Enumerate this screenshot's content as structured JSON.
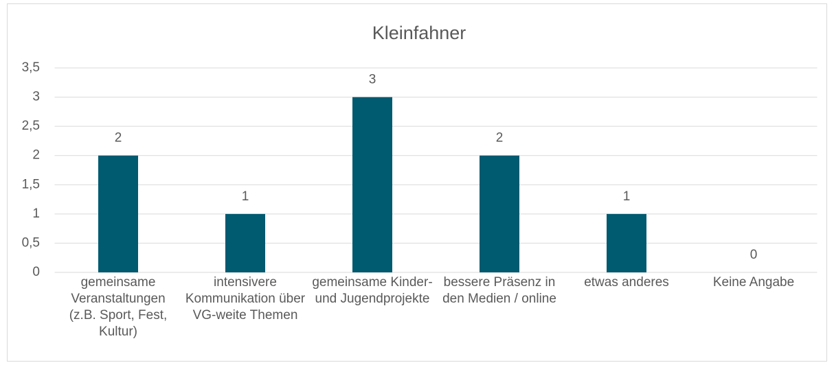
{
  "chart_data": {
    "type": "bar",
    "title": "Kleinfahner",
    "categories": [
      "gemeinsame Veranstaltungen (z.B. Sport, Fest, Kultur)",
      "intensivere Kommunikation über VG-weite Themen",
      "gemeinsame Kinder- und Jugendprojekte",
      "bessere Präsenz in den Medien / online",
      "etwas anderes",
      "Keine Angabe"
    ],
    "values": [
      2,
      1,
      3,
      2,
      1,
      0
    ],
    "color": "#005a70",
    "ylim": [
      0,
      3.5
    ],
    "yticks": [
      0,
      {
        "value": 0.5,
        "label": "0,5"
      },
      1,
      {
        "value": 1.5,
        "label": "1,5"
      },
      2,
      {
        "value": 2.5,
        "label": "2,5"
      },
      3,
      {
        "value": 3.5,
        "label": "3,5"
      }
    ],
    "grid": true
  }
}
